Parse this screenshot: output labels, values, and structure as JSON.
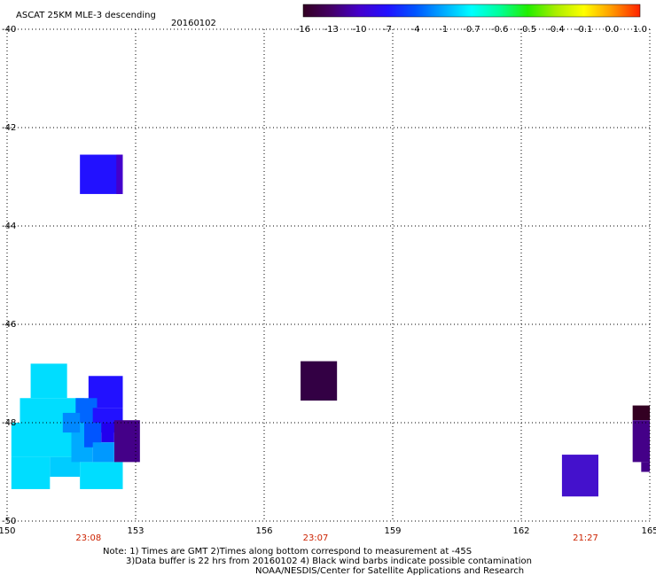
{
  "chart_data": {
    "type": "heatmap",
    "title": "ASCAT 25KM MLE-3 descending",
    "date": "20160102",
    "xlim": [
      150,
      165
    ],
    "ylim": [
      -50,
      -40
    ],
    "x_ticks": [
      "150",
      "153",
      "156",
      "159",
      "162",
      "165"
    ],
    "y_ticks": [
      "-40",
      "-42",
      "-44",
      "-46",
      "-48",
      "-50"
    ],
    "grid": true,
    "time_labels": [
      {
        "x": 151.9,
        "text": "23:08"
      },
      {
        "x": 157.2,
        "text": "23:07"
      },
      {
        "x": 163.5,
        "text": "21:27"
      }
    ],
    "colorbar": {
      "labels": [
        "-16",
        "-13",
        "-10",
        "-7",
        "-4",
        "-1",
        "-0.7",
        "-0.6",
        "-0.5",
        "-0.4",
        "-0.1",
        "0.0",
        "1.0"
      ],
      "colors": [
        "#330022",
        "#440066",
        "#4400cc",
        "#2211ff",
        "#0055ff",
        "#00aaff",
        "#00ffff",
        "#00ff99",
        "#22ee00",
        "#aaee00",
        "#ffff00",
        "#ff9900",
        "#ff2200"
      ]
    },
    "cells": [
      {
        "x0": 151.7,
        "x1": 152.7,
        "y0": -43.35,
        "y1": -42.55,
        "color": "#2211ff"
      },
      {
        "x0": 152.55,
        "x1": 152.7,
        "y0": -43.35,
        "y1": -42.55,
        "color": "#4400cc"
      },
      {
        "x0": 150.55,
        "x1": 151.4,
        "y0": -47.5,
        "y1": -46.8,
        "color": "#00ddff"
      },
      {
        "x0": 150.3,
        "x1": 151.8,
        "y0": -48.0,
        "y1": -47.5,
        "color": "#00ddff"
      },
      {
        "x0": 150.1,
        "x1": 151.5,
        "y0": -48.7,
        "y1": -48.0,
        "color": "#00ddff"
      },
      {
        "x0": 150.1,
        "x1": 151.0,
        "y0": -49.35,
        "y1": -48.7,
        "color": "#00ddff"
      },
      {
        "x0": 151.0,
        "x1": 151.7,
        "y0": -49.1,
        "y1": -48.7,
        "color": "#00ccff"
      },
      {
        "x0": 151.7,
        "x1": 152.7,
        "y0": -49.35,
        "y1": -48.8,
        "color": "#00ddff"
      },
      {
        "x0": 151.5,
        "x1": 152.0,
        "y0": -48.8,
        "y1": -48.0,
        "color": "#00aaff"
      },
      {
        "x0": 151.9,
        "x1": 152.7,
        "y0": -47.7,
        "y1": -47.05,
        "color": "#2211ff"
      },
      {
        "x0": 151.6,
        "x1": 152.1,
        "y0": -48.0,
        "y1": -47.5,
        "color": "#0066ff"
      },
      {
        "x0": 151.3,
        "x1": 151.7,
        "y0": -48.2,
        "y1": -47.8,
        "color": "#0088ff"
      },
      {
        "x0": 152.0,
        "x1": 152.7,
        "y0": -48.2,
        "y1": -47.7,
        "color": "#2211ff"
      },
      {
        "x0": 151.8,
        "x1": 152.2,
        "y0": -48.5,
        "y1": -48.0,
        "color": "#0055ff"
      },
      {
        "x0": 152.2,
        "x1": 152.5,
        "y0": -48.4,
        "y1": -48.0,
        "color": "#2200ee"
      },
      {
        "x0": 152.5,
        "x1": 153.1,
        "y0": -48.8,
        "y1": -47.95,
        "color": "#440088"
      },
      {
        "x0": 152.0,
        "x1": 152.5,
        "y0": -48.8,
        "y1": -48.4,
        "color": "#0099ff"
      },
      {
        "x0": 156.85,
        "x1": 157.7,
        "y0": -47.55,
        "y1": -46.75,
        "color": "#330044"
      },
      {
        "x0": 162.95,
        "x1": 163.8,
        "y0": -49.5,
        "y1": -48.65,
        "color": "#4411cc"
      },
      {
        "x0": 164.6,
        "x1": 165.0,
        "y0": -47.95,
        "y1": -47.65,
        "color": "#330022"
      },
      {
        "x0": 164.6,
        "x1": 165.0,
        "y0": -48.8,
        "y1": -47.95,
        "color": "#440088"
      },
      {
        "x0": 164.8,
        "x1": 165.0,
        "y0": -49.0,
        "y1": -48.8,
        "color": "#440088"
      }
    ]
  },
  "notes": {
    "line1": "Note: 1) Times are GMT 2)Times along bottom correspond to measurement at -45S",
    "line2": "3)Data buffer is 22 hrs from 20160102 4) Black wind barbs indicate possible contamination",
    "line3": "NOAA/NESDIS/Center for Satellite Applications and Research"
  }
}
